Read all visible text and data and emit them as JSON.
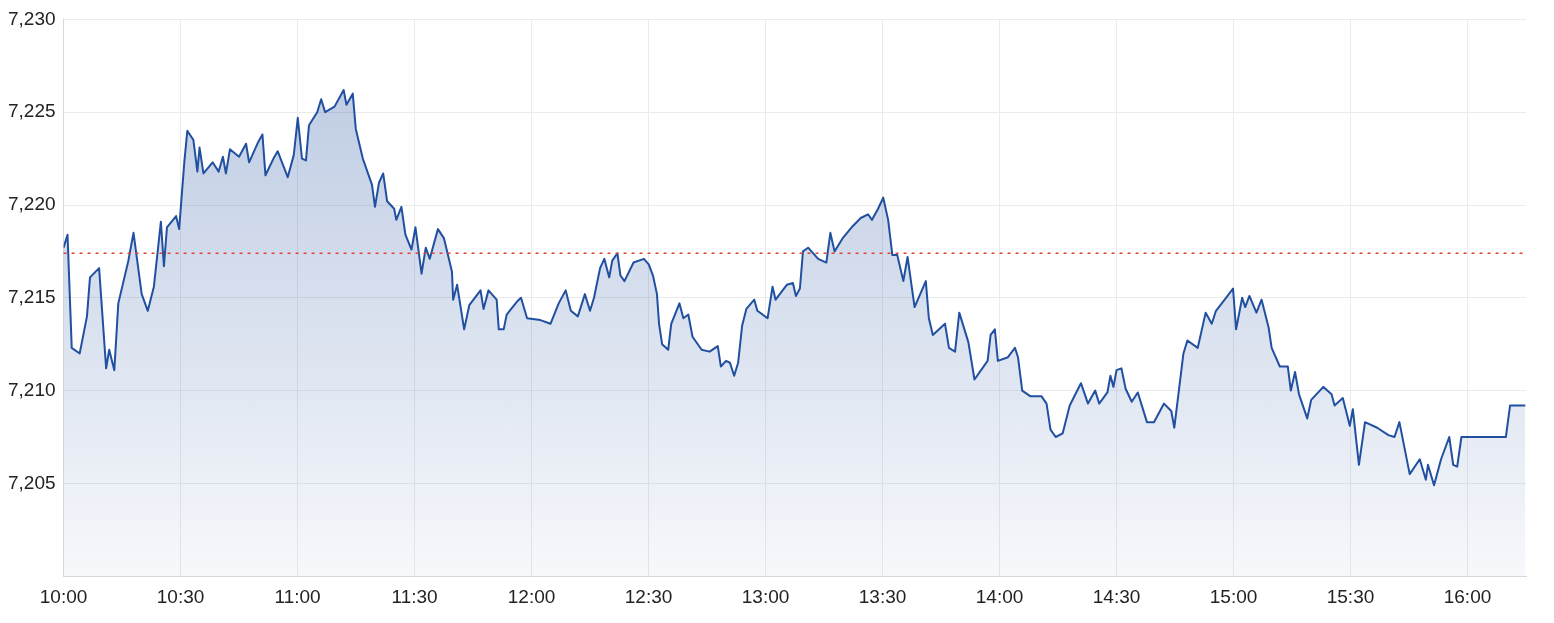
{
  "chart_data": {
    "type": "area",
    "xlim": [
      10,
      16.25
    ],
    "ylim": [
      7200,
      7230
    ],
    "xticks": [
      {
        "value": 10,
        "label": "10:00"
      },
      {
        "value": 10.5,
        "label": "10:30"
      },
      {
        "value": 11,
        "label": "11:00"
      },
      {
        "value": 11.5,
        "label": "11:30"
      },
      {
        "value": 12,
        "label": "12:00"
      },
      {
        "value": 12.5,
        "label": "12:30"
      },
      {
        "value": 13,
        "label": "13:00"
      },
      {
        "value": 13.5,
        "label": "13:30"
      },
      {
        "value": 14,
        "label": "14:00"
      },
      {
        "value": 14.5,
        "label": "14:30"
      },
      {
        "value": 15,
        "label": "15:00"
      },
      {
        "value": 15.5,
        "label": "15:30"
      },
      {
        "value": 16,
        "label": "16:00"
      }
    ],
    "yticks": [
      {
        "value": 7205,
        "label": "7,205"
      },
      {
        "value": 7210,
        "label": "7,210"
      },
      {
        "value": 7215,
        "label": "7,215"
      },
      {
        "value": 7220,
        "label": "7,220"
      },
      {
        "value": 7225,
        "label": "7,225"
      },
      {
        "value": 7230,
        "label": "7,230"
      }
    ],
    "grid": true,
    "legend": false,
    "marker": "none",
    "line_style": "solid",
    "ref_lines": [
      {
        "axis": "y",
        "value": 7217.4,
        "color": "#e8412c",
        "line_style": "dotted"
      }
    ],
    "series": [
      {
        "color": "#2150a0",
        "x": [
          10.0,
          10.017,
          10.035,
          10.069,
          10.1,
          10.113,
          10.152,
          10.182,
          10.195,
          10.217,
          10.234,
          10.277,
          10.299,
          10.334,
          10.36,
          10.386,
          10.416,
          10.429,
          10.442,
          10.481,
          10.494,
          10.516,
          10.529,
          10.555,
          10.572,
          10.581,
          10.598,
          10.637,
          10.663,
          10.681,
          10.694,
          10.711,
          10.75,
          10.78,
          10.793,
          10.832,
          10.85,
          10.863,
          10.897,
          10.915,
          10.958,
          10.984,
          11.001,
          11.019,
          11.036,
          11.049,
          11.084,
          11.101,
          11.118,
          11.158,
          11.197,
          11.209,
          11.236,
          11.249,
          11.279,
          11.318,
          11.331,
          11.348,
          11.366,
          11.383,
          11.413,
          11.422,
          11.444,
          11.461,
          11.487,
          11.504,
          11.53,
          11.548,
          11.565,
          11.6,
          11.626,
          11.66,
          11.665,
          11.682,
          11.712,
          11.734,
          11.782,
          11.795,
          11.816,
          11.851,
          11.86,
          11.881,
          11.894,
          11.938,
          11.955,
          11.981,
          12.038,
          12.081,
          12.116,
          12.146,
          12.168,
          12.198,
          12.228,
          12.25,
          12.267,
          12.293,
          12.311,
          12.332,
          12.345,
          12.367,
          12.38,
          12.397,
          12.436,
          12.48,
          12.501,
          12.519,
          12.536,
          12.545,
          12.558,
          12.584,
          12.597,
          12.632,
          12.649,
          12.67,
          12.688,
          12.727,
          12.761,
          12.796,
          12.809,
          12.831,
          12.848,
          12.866,
          12.883,
          12.9,
          12.918,
          12.952,
          12.965,
          13.009,
          13.03,
          13.043,
          13.091,
          13.117,
          13.13,
          13.147,
          13.16,
          13.182,
          13.225,
          13.26,
          13.277,
          13.295,
          13.329,
          13.368,
          13.407,
          13.438,
          13.455,
          13.481,
          13.503,
          13.524,
          13.542,
          13.563,
          13.589,
          13.607,
          13.637,
          13.685,
          13.698,
          13.715,
          13.767,
          13.784,
          13.81,
          13.828,
          13.867,
          13.893,
          13.949,
          13.962,
          13.98,
          13.993,
          14.036,
          14.066,
          14.079,
          14.097,
          14.131,
          14.179,
          14.201,
          14.218,
          14.24,
          14.27,
          14.3,
          14.348,
          14.378,
          14.409,
          14.426,
          14.461,
          14.474,
          14.487,
          14.5,
          14.521,
          14.539,
          14.565,
          14.591,
          14.63,
          14.66,
          14.703,
          14.734,
          14.747,
          14.786,
          14.803,
          14.847,
          14.881,
          14.907,
          14.925,
          14.968,
          14.998,
          15.011,
          15.037,
          15.05,
          15.068,
          15.098,
          15.12,
          15.15,
          15.163,
          15.198,
          15.232,
          15.245,
          15.263,
          15.28,
          15.315,
          15.332,
          15.384,
          15.419,
          15.432,
          15.467,
          15.497,
          15.51,
          15.536,
          15.562,
          15.614,
          15.662,
          15.688,
          15.709,
          15.753,
          15.796,
          15.822,
          15.831,
          15.857,
          15.887,
          15.922,
          15.939,
          15.956,
          15.974,
          16.164,
          16.182,
          16.247
        ],
        "values": [
          7217.7,
          7218.4,
          7212.3,
          7212.0,
          7214.0,
          7216.1,
          7216.6,
          7211.2,
          7212.2,
          7211.1,
          7214.7,
          7217.0,
          7218.5,
          7215.2,
          7214.3,
          7215.6,
          7219.1,
          7216.7,
          7218.8,
          7219.4,
          7218.7,
          7222.3,
          7224.0,
          7223.5,
          7221.8,
          7223.1,
          7221.7,
          7222.3,
          7221.8,
          7222.6,
          7221.7,
          7223.0,
          7222.6,
          7223.3,
          7222.3,
          7223.4,
          7223.8,
          7221.6,
          7222.5,
          7222.9,
          7221.5,
          7222.7,
          7224.7,
          7222.5,
          7222.4,
          7224.3,
          7225.0,
          7225.7,
          7225.0,
          7225.3,
          7226.2,
          7225.4,
          7226.0,
          7224.1,
          7222.5,
          7221.1,
          7219.9,
          7221.2,
          7221.7,
          7220.2,
          7219.8,
          7219.2,
          7219.9,
          7218.4,
          7217.6,
          7218.8,
          7216.3,
          7217.7,
          7217.1,
          7218.7,
          7218.2,
          7216.4,
          7214.9,
          7215.7,
          7213.3,
          7214.6,
          7215.4,
          7214.4,
          7215.4,
          7214.9,
          7213.3,
          7213.3,
          7214.1,
          7214.8,
          7215.0,
          7213.9,
          7213.8,
          7213.6,
          7214.7,
          7215.4,
          7214.3,
          7214.0,
          7215.2,
          7214.3,
          7215.0,
          7216.6,
          7217.1,
          7216.1,
          7217.0,
          7217.4,
          7216.2,
          7215.9,
          7216.9,
          7217.1,
          7216.8,
          7216.2,
          7215.2,
          7213.6,
          7212.5,
          7212.2,
          7213.6,
          7214.7,
          7213.9,
          7214.1,
          7212.9,
          7212.2,
          7212.1,
          7212.4,
          7211.3,
          7211.6,
          7211.5,
          7210.8,
          7211.5,
          7213.5,
          7214.4,
          7214.9,
          7214.3,
          7213.9,
          7215.6,
          7214.9,
          7215.7,
          7215.8,
          7215.1,
          7215.5,
          7217.5,
          7217.7,
          7217.1,
          7216.9,
          7218.5,
          7217.5,
          7218.2,
          7218.8,
          7219.3,
          7219.5,
          7219.2,
          7219.8,
          7220.4,
          7219.2,
          7217.3,
          7217.3,
          7215.9,
          7217.2,
          7214.5,
          7215.9,
          7213.9,
          7213.0,
          7213.6,
          7212.3,
          7212.1,
          7214.2,
          7212.6,
          7210.6,
          7211.6,
          7213.0,
          7213.3,
          7211.6,
          7211.8,
          7212.3,
          7211.8,
          7210.0,
          7209.7,
          7209.7,
          7209.3,
          7207.9,
          7207.5,
          7207.7,
          7209.2,
          7210.4,
          7209.3,
          7210.0,
          7209.3,
          7209.9,
          7210.8,
          7210.2,
          7211.1,
          7211.2,
          7210.1,
          7209.4,
          7209.9,
          7208.3,
          7208.3,
          7209.3,
          7208.9,
          7208.0,
          7212.0,
          7212.7,
          7212.3,
          7214.2,
          7213.6,
          7214.3,
          7215.0,
          7215.5,
          7213.3,
          7215.0,
          7214.5,
          7215.1,
          7214.2,
          7214.9,
          7213.4,
          7212.3,
          7211.3,
          7211.3,
          7210.0,
          7211.0,
          7209.8,
          7208.5,
          7209.5,
          7210.2,
          7209.8,
          7209.2,
          7209.6,
          7208.1,
          7209.0,
          7206.0,
          7208.3,
          7208.0,
          7207.6,
          7207.5,
          7208.3,
          7205.5,
          7206.3,
          7205.2,
          7206.0,
          7204.9,
          7206.3,
          7207.5,
          7206.0,
          7205.9,
          7207.5,
          7207.5,
          7209.2,
          7209.2
        ]
      }
    ]
  }
}
